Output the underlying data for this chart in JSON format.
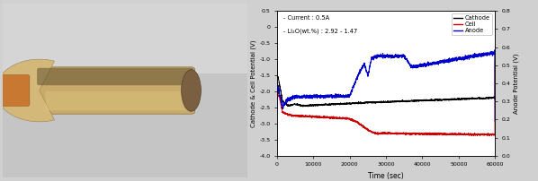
{
  "left_ylabel": "Cathode & Cell Potential (V)",
  "right_ylabel": "Anode Potential (V)",
  "xlabel": "Time (sec)",
  "annotation_line1": "- Current : 0.5A",
  "annotation_line2": "- Li₂O(wt.%) : 2.92 - 1.47",
  "legend_labels": [
    "Cathode",
    "Cell",
    "Anode"
  ],
  "legend_colors": [
    "#000000",
    "#cc0000",
    "#0000cc"
  ],
  "xlim": [
    0,
    60000
  ],
  "ylim_left": [
    -4.0,
    0.5
  ],
  "ylim_right": [
    0.0,
    0.8
  ],
  "xticks": [
    0,
    10000,
    20000,
    30000,
    40000,
    50000,
    60000
  ],
  "yticks_left": [
    -4.0,
    -3.5,
    -3.0,
    -2.5,
    -2.0,
    -1.5,
    -1.0,
    -0.5,
    0.0,
    0.5
  ],
  "yticks_right": [
    0.0,
    0.1,
    0.2,
    0.3,
    0.4,
    0.5,
    0.6,
    0.7,
    0.8
  ],
  "photo_bg": "#b8b8b8",
  "fig_bg": "#d8d8d8",
  "chart_bg": "#ffffff"
}
